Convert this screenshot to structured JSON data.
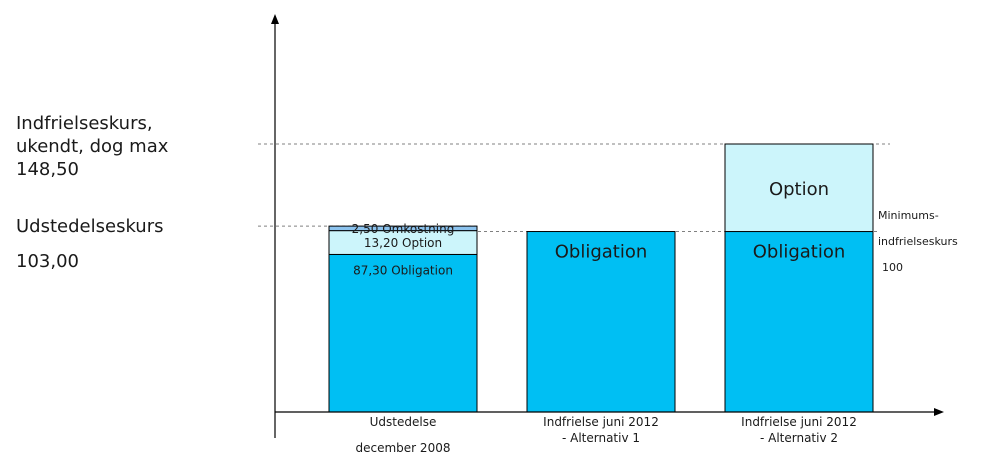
{
  "left_labels": {
    "redemption_line1": "Indfrielseskurs,",
    "redemption_line2": "ukendt, dog max",
    "redemption_line3": "148,50",
    "issue_line1": "Udstedelseskurs",
    "issue_line2": "103,00"
  },
  "min_label": {
    "line1": "Minimums-",
    "line2": "indfrielseskurs",
    "line3": "100"
  },
  "colors": {
    "obligation": "#00bff3",
    "option": "#ccf5fb",
    "omkostning": "#8cc3ee",
    "outline": "#000000",
    "dashed": "#808080",
    "axis": "#000000"
  },
  "chart_data": {
    "type": "bar",
    "stacked": true,
    "categories": [
      [
        "Udstedelse",
        "december 2008"
      ],
      [
        "Indfrielse juni 2012",
        "- Alternativ 1"
      ],
      [
        "Indfrielse juni 2012",
        "- Alternativ 2"
      ]
    ],
    "bars": [
      {
        "segments": [
          {
            "kind": "obligation",
            "value": 87.3,
            "label": "87,30 Obligation",
            "size": "small"
          },
          {
            "kind": "option",
            "value": 13.2,
            "label": "13,20 Option",
            "size": "small"
          },
          {
            "kind": "omkostning",
            "value": 2.5,
            "label": "2,50 Omkostning",
            "size": "small"
          }
        ]
      },
      {
        "segments": [
          {
            "kind": "obligation",
            "value": 100,
            "label": "Obligation",
            "size": "big"
          }
        ]
      },
      {
        "segments": [
          {
            "kind": "obligation",
            "value": 100,
            "label": "Obligation",
            "size": "big"
          },
          {
            "kind": "option",
            "value": 48.5,
            "label": "Option",
            "size": "big"
          }
        ]
      }
    ],
    "reference_lines": [
      148.5,
      103.0,
      100
    ],
    "ylim": [
      0,
      148.5
    ]
  }
}
